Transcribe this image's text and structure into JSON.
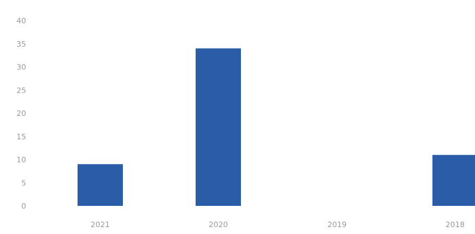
{
  "chart_data": {
    "type": "bar",
    "categories": [
      "2021",
      "2020",
      "2019",
      "2018"
    ],
    "values": [
      9,
      34,
      0,
      11
    ],
    "yticks": [
      "0",
      "5",
      "10",
      "15",
      "20",
      "25",
      "30",
      "35",
      "40"
    ],
    "ylim": [
      0,
      40
    ],
    "grid": false,
    "legend": "none",
    "title": "",
    "xlabel": "",
    "ylabel": "",
    "bar_color": "#2b5ca8",
    "text_color": "#9a9a9a"
  }
}
